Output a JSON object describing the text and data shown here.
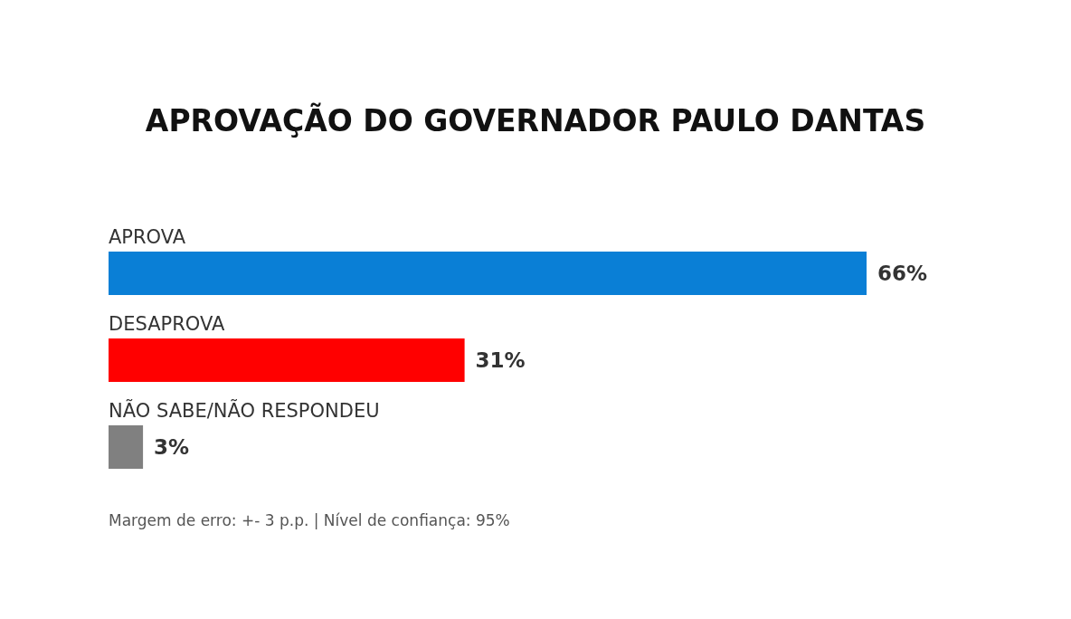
{
  "chart_data": {
    "type": "bar",
    "orientation": "horizontal",
    "title": "APROVAÇÃO DO GOVERNADOR PAULO DANTAS",
    "categories": [
      "APROVA",
      "DESAPROVA",
      "NÃO SABE/NÃO RESPONDEU"
    ],
    "values": [
      66,
      31,
      3
    ],
    "colors": [
      "#0a7fd6",
      "#ff0000",
      "#808080"
    ],
    "value_labels": [
      "66%",
      "31%",
      "3%"
    ],
    "annotations": [
      "Margem de erro: +- 3 p.p. | Nível de confiança: 95%"
    ]
  }
}
